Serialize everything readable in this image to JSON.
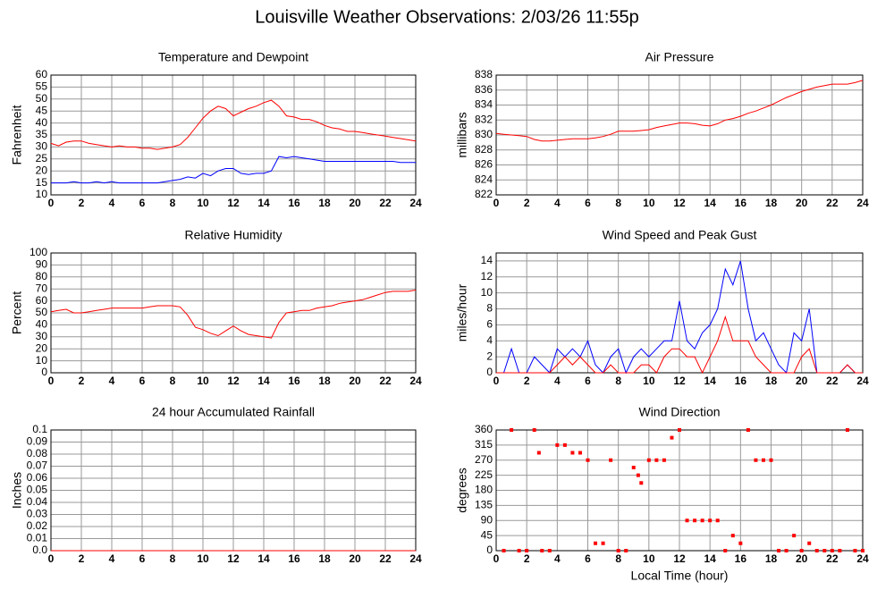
{
  "title": "Louisville Weather Observations: 2/03/26 11:55p",
  "chart_data": [
    {
      "type": "line",
      "title": "Temperature and Dewpoint",
      "y_label": "Fahrenheit",
      "x": [
        0,
        0.5,
        1,
        1.5,
        2,
        2.5,
        3,
        3.5,
        4,
        4.5,
        5,
        5.5,
        6,
        6.5,
        7,
        7.5,
        8,
        8.5,
        9,
        9.5,
        10,
        10.5,
        11,
        11.5,
        12,
        12.5,
        13,
        13.5,
        14,
        14.5,
        15,
        15.5,
        16,
        16.5,
        17,
        17.5,
        18,
        18.5,
        19,
        19.5,
        20,
        20.5,
        21,
        21.5,
        22,
        22.5,
        23,
        23.5,
        24
      ],
      "series": [
        {
          "color": "#ff0000",
          "values": [
            31.5,
            30.5,
            32,
            32.5,
            32.5,
            31.5,
            31,
            30.5,
            30,
            30.5,
            30,
            30,
            29.5,
            29.5,
            29,
            29.5,
            30,
            31,
            34,
            38,
            42,
            45,
            47,
            46,
            43,
            44.5,
            46,
            47,
            48.5,
            49.5,
            47,
            43,
            42.5,
            41.5,
            41.5,
            40.5,
            39,
            38,
            37.5,
            36.5,
            36.5,
            36,
            35.5,
            35,
            34.5,
            34,
            33.5,
            33,
            32.5
          ]
        },
        {
          "color": "#0000ff",
          "values": [
            15,
            15,
            15,
            15.5,
            15,
            15,
            15.5,
            15,
            15.5,
            15,
            15,
            15,
            15,
            15,
            15,
            15.5,
            16,
            16.5,
            17.5,
            17,
            19,
            18,
            20,
            21,
            21,
            19,
            18.5,
            19,
            19,
            20,
            26,
            25.5,
            26,
            25.5,
            25,
            24.5,
            24,
            24,
            24,
            24,
            24,
            24,
            24,
            24,
            24,
            24,
            23.5,
            23.5,
            23.5
          ]
        }
      ],
      "xlim": [
        0,
        24
      ],
      "xticks": [
        0,
        2,
        4,
        6,
        8,
        10,
        12,
        14,
        16,
        18,
        20,
        22,
        24
      ],
      "ylim": [
        10,
        60
      ],
      "yticks": [
        10,
        15,
        20,
        25,
        30,
        35,
        40,
        45,
        50,
        55,
        60
      ],
      "grid": true
    },
    {
      "type": "line",
      "title": "Air Pressure",
      "y_label": "millibars",
      "x": [
        0,
        0.5,
        1,
        1.5,
        2,
        2.5,
        3,
        3.5,
        4,
        4.5,
        5,
        5.5,
        6,
        6.5,
        7,
        7.5,
        8,
        8.5,
        9,
        9.5,
        10,
        10.5,
        11,
        11.5,
        12,
        12.5,
        13,
        13.5,
        14,
        14.5,
        15,
        15.5,
        16,
        16.5,
        17,
        17.5,
        18,
        18.5,
        19,
        19.5,
        20,
        20.5,
        21,
        21.5,
        22,
        22.5,
        23,
        23.5,
        24
      ],
      "series": [
        {
          "color": "#ff0000",
          "values": [
            830.2,
            830.1,
            830,
            829.9,
            829.8,
            829.4,
            829.2,
            829.2,
            829.3,
            829.4,
            829.5,
            829.5,
            829.5,
            829.6,
            829.8,
            830.1,
            830.5,
            830.5,
            830.5,
            830.6,
            830.7,
            831,
            831.2,
            831.4,
            831.6,
            831.6,
            831.5,
            831.3,
            831.2,
            831.5,
            832,
            832.2,
            832.5,
            832.9,
            833.2,
            833.6,
            834,
            834.5,
            835,
            835.4,
            835.8,
            836.1,
            836.4,
            836.6,
            836.8,
            836.8,
            836.8,
            837,
            837.3
          ]
        }
      ],
      "xlim": [
        0,
        24
      ],
      "xticks": [
        0,
        2,
        4,
        6,
        8,
        10,
        12,
        14,
        16,
        18,
        20,
        22,
        24
      ],
      "ylim": [
        822,
        838
      ],
      "yticks": [
        822,
        824,
        826,
        828,
        830,
        832,
        834,
        836,
        838
      ],
      "grid": true
    },
    {
      "type": "line",
      "title": "Relative Humidity",
      "y_label": "Percent",
      "x": [
        0,
        0.5,
        1,
        1.5,
        2,
        2.5,
        3,
        3.5,
        4,
        4.5,
        5,
        5.5,
        6,
        6.5,
        7,
        7.5,
        8,
        8.5,
        9,
        9.5,
        10,
        10.5,
        11,
        11.5,
        12,
        12.5,
        13,
        13.5,
        14,
        14.5,
        15,
        15.5,
        16,
        16.5,
        17,
        17.5,
        18,
        18.5,
        19,
        19.5,
        20,
        20.5,
        21,
        21.5,
        22,
        22.5,
        23,
        23.5,
        24
      ],
      "series": [
        {
          "color": "#ff0000",
          "values": [
            51,
            52,
            53,
            50,
            50,
            51,
            52,
            53,
            54,
            54,
            54,
            54,
            54,
            55,
            56,
            56,
            56,
            55,
            48,
            38,
            36,
            33,
            31,
            35,
            39,
            35,
            32,
            31,
            30,
            29,
            42,
            50,
            51,
            52,
            52,
            54,
            55,
            56,
            58,
            59,
            60,
            61,
            63,
            65,
            67,
            68,
            68,
            68,
            69
          ]
        }
      ],
      "xlim": [
        0,
        24
      ],
      "xticks": [
        0,
        2,
        4,
        6,
        8,
        10,
        12,
        14,
        16,
        18,
        20,
        22,
        24
      ],
      "ylim": [
        0,
        100
      ],
      "yticks": [
        0,
        10,
        20,
        30,
        40,
        50,
        60,
        70,
        80,
        90,
        100
      ],
      "grid": true
    },
    {
      "type": "line",
      "title": "Wind Speed and Peak Gust",
      "y_label": "miles/hour",
      "x": [
        0,
        0.5,
        1,
        1.5,
        2,
        2.5,
        3,
        3.5,
        4,
        4.5,
        5,
        5.5,
        6,
        6.5,
        7,
        7.5,
        8,
        8.5,
        9,
        9.5,
        10,
        10.5,
        11,
        11.5,
        12,
        12.5,
        13,
        13.5,
        14,
        14.5,
        15,
        15.5,
        16,
        16.5,
        17,
        17.5,
        18,
        18.5,
        19,
        19.5,
        20,
        20.5,
        21,
        21.5,
        22,
        22.5,
        23,
        23.5,
        24
      ],
      "series": [
        {
          "color": "#0000ff",
          "values": [
            0,
            0,
            3,
            0,
            0,
            2,
            1,
            0,
            3,
            2,
            3,
            2,
            4,
            1,
            0,
            2,
            3,
            0,
            2,
            3,
            2,
            3,
            4,
            4,
            9,
            4,
            3,
            5,
            6,
            8,
            13,
            11,
            14,
            8,
            4,
            5,
            3,
            1,
            0,
            5,
            4,
            8,
            0,
            0,
            0,
            0,
            1,
            0,
            0
          ]
        },
        {
          "color": "#ff0000",
          "values": [
            0,
            0,
            0,
            0,
            0,
            0,
            0,
            0,
            1,
            2,
            1,
            2,
            1,
            0,
            0,
            1,
            0,
            0,
            0,
            1,
            1,
            0,
            2,
            3,
            3,
            2,
            2,
            0,
            2,
            4,
            7,
            4,
            4,
            4,
            2,
            1,
            0,
            0,
            0,
            0,
            2,
            3,
            0,
            0,
            0,
            0,
            1,
            0,
            0
          ]
        }
      ],
      "xlim": [
        0,
        24
      ],
      "xticks": [
        0,
        2,
        4,
        6,
        8,
        10,
        12,
        14,
        16,
        18,
        20,
        22,
        24
      ],
      "ylim": [
        0,
        15
      ],
      "yticks": [
        0,
        2,
        4,
        6,
        8,
        10,
        12,
        14
      ],
      "grid": true
    },
    {
      "type": "line",
      "title": "24 hour Accumulated Rainfall",
      "y_label": "Inches",
      "x": [
        0,
        0.5,
        1,
        1.5,
        2,
        2.5,
        3,
        3.5,
        4,
        4.5,
        5,
        5.5,
        6,
        6.5,
        7,
        7.5,
        8,
        8.5,
        9,
        9.5,
        10,
        10.5,
        11,
        11.5,
        12,
        12.5,
        13,
        13.5,
        14,
        14.5,
        15,
        15.5,
        16,
        16.5,
        17,
        17.5,
        18,
        18.5,
        19,
        19.5,
        20,
        20.5,
        21,
        21.5,
        22,
        22.5,
        23,
        23.5,
        24
      ],
      "series": [
        {
          "color": "#ff0000",
          "values": [
            0,
            0,
            0,
            0,
            0,
            0,
            0,
            0,
            0,
            0,
            0,
            0,
            0,
            0,
            0,
            0,
            0,
            0,
            0,
            0,
            0,
            0,
            0,
            0,
            0,
            0,
            0,
            0,
            0,
            0,
            0,
            0,
            0,
            0,
            0,
            0,
            0,
            0,
            0,
            0,
            0,
            0,
            0,
            0,
            0,
            0,
            0,
            0,
            0
          ]
        }
      ],
      "xlim": [
        0,
        24
      ],
      "xticks": [
        0,
        2,
        4,
        6,
        8,
        10,
        12,
        14,
        16,
        18,
        20,
        22,
        24
      ],
      "ylim": [
        0,
        0.1
      ],
      "yticks": [
        {
          "value": 0,
          "label": "0.0"
        },
        0.01,
        0.02,
        0.03,
        0.04,
        0.05,
        0.06,
        0.07,
        0.08,
        0.09,
        0.1
      ],
      "grid": true
    },
    {
      "type": "scatter",
      "title": "Wind Direction",
      "y_label": "degrees",
      "x_label": "Local Time (hour)",
      "x": [
        0.5,
        1,
        1.5,
        2,
        2.5,
        2.8,
        3,
        3.5,
        4,
        4.5,
        5,
        5.5,
        6,
        6.5,
        7,
        7.5,
        8,
        8.5,
        9,
        9.3,
        9.5,
        10,
        10.5,
        11,
        11.5,
        12,
        12.5,
        13,
        13.5,
        14,
        14.5,
        15,
        15.5,
        16,
        16.5,
        17,
        17.5,
        18,
        18.5,
        19,
        19.5,
        20,
        20.5,
        21,
        21.5,
        22,
        22.5,
        23,
        23.5,
        24
      ],
      "series": [
        {
          "color": "#ff0000",
          "values": [
            0,
            360,
            0,
            0,
            360,
            292,
            0,
            0,
            315,
            315,
            292,
            292,
            270,
            22,
            22,
            270,
            0,
            0,
            248,
            225,
            202,
            270,
            270,
            270,
            337,
            360,
            90,
            90,
            90,
            90,
            90,
            0,
            45,
            22,
            360,
            270,
            270,
            270,
            0,
            0,
            45,
            0,
            22,
            0,
            0,
            0,
            0,
            360,
            0,
            0
          ]
        }
      ],
      "xlim": [
        0,
        24
      ],
      "xticks": [
        0,
        2,
        4,
        6,
        8,
        10,
        12,
        14,
        16,
        18,
        20,
        22,
        24
      ],
      "ylim": [
        0,
        360
      ],
      "yticks": [
        0,
        45,
        90,
        135,
        180,
        225,
        270,
        315,
        360
      ],
      "grid": true
    }
  ]
}
